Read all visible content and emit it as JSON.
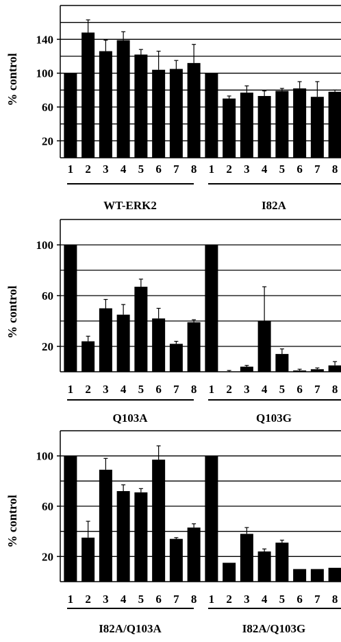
{
  "chart_data": [
    {
      "type": "bar",
      "ylabel": "% control",
      "ylim": [
        0,
        180
      ],
      "yticks": [
        20,
        60,
        100,
        140
      ],
      "gridlines": [
        20,
        40,
        60,
        80,
        100,
        120,
        140,
        160
      ],
      "grid": true,
      "groups": [
        {
          "label": "WT-ERK2",
          "categories": [
            "1",
            "2",
            "3",
            "4",
            "5",
            "6",
            "7",
            "8"
          ],
          "values": [
            100,
            148,
            126,
            139,
            122,
            104,
            105,
            112
          ],
          "errors": [
            0,
            15,
            13,
            10,
            6,
            22,
            10,
            22
          ]
        },
        {
          "label": "I82A",
          "categories": [
            "1",
            "2",
            "3",
            "4",
            "5",
            "6",
            "7",
            "8"
          ],
          "values": [
            100,
            70,
            77,
            73,
            79,
            82,
            72,
            78
          ],
          "errors": [
            0,
            3,
            8,
            6,
            3,
            8,
            18,
            2
          ]
        }
      ]
    },
    {
      "type": "bar",
      "ylabel": "% control",
      "ylim": [
        0,
        120
      ],
      "yticks": [
        20,
        60,
        100
      ],
      "gridlines": [
        20,
        40,
        60,
        80,
        100
      ],
      "grid": true,
      "groups": [
        {
          "label": "Q103A",
          "categories": [
            "1",
            "2",
            "3",
            "4",
            "5",
            "6",
            "7",
            "8"
          ],
          "values": [
            100,
            24,
            50,
            45,
            67,
            42,
            22,
            39
          ],
          "errors": [
            0,
            4,
            7,
            8,
            6,
            8,
            2,
            2
          ]
        },
        {
          "label": "Q103G",
          "categories": [
            "1",
            "2",
            "3",
            "4",
            "5",
            "6",
            "7",
            "8"
          ],
          "values": [
            100,
            0,
            4,
            40,
            14,
            1,
            2,
            5
          ],
          "errors": [
            0,
            1,
            1,
            27,
            4,
            1,
            1,
            3
          ]
        }
      ]
    },
    {
      "type": "bar",
      "ylabel": "% control",
      "ylim": [
        0,
        120
      ],
      "yticks": [
        20,
        60,
        100
      ],
      "gridlines": [
        20,
        40,
        60,
        80,
        100
      ],
      "grid": true,
      "groups": [
        {
          "label": "I82A/Q103A",
          "categories": [
            "1",
            "2",
            "3",
            "4",
            "5",
            "6",
            "7",
            "8"
          ],
          "values": [
            100,
            35,
            89,
            72,
            71,
            97,
            34,
            43
          ],
          "errors": [
            0,
            13,
            9,
            5,
            3,
            11,
            1,
            3
          ]
        },
        {
          "label": "I82A/Q103G",
          "categories": [
            "1",
            "2",
            "3",
            "4",
            "5",
            "6",
            "7",
            "8"
          ],
          "values": [
            100,
            15,
            38,
            24,
            31,
            10,
            10,
            11
          ],
          "errors": [
            0,
            0,
            5,
            2,
            2,
            0,
            0,
            0
          ]
        }
      ]
    }
  ]
}
